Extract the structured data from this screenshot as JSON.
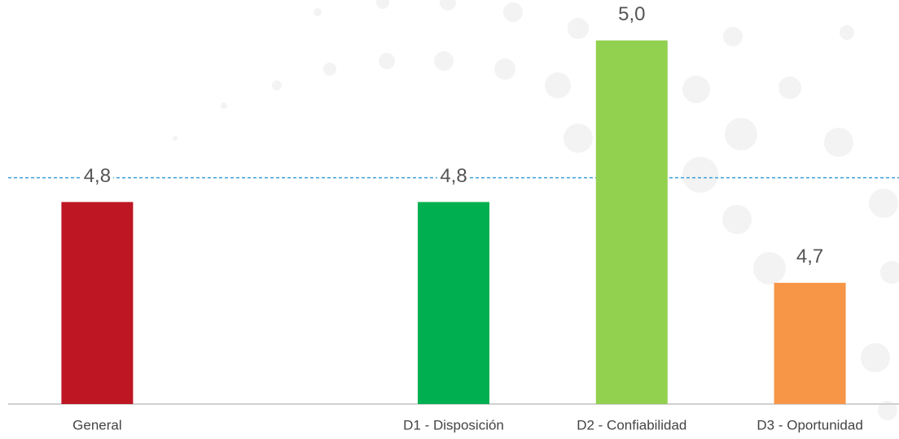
{
  "chart_data": {
    "type": "bar",
    "categories": [
      "General",
      null,
      "D1 - Disposición",
      "D2 - Confiabilidad",
      "D3 - Oportunidad"
    ],
    "values": [
      4.8,
      null,
      4.8,
      5.0,
      4.7
    ],
    "value_labels": [
      "4,8",
      null,
      "4,8",
      "5,0",
      "4,7"
    ],
    "colors": [
      "#be1622",
      null,
      "#00b050",
      "#92d050",
      "#f79646"
    ],
    "ylim": [
      4.55,
      5.05
    ],
    "reference_line": 4.83,
    "reference_color": "#3aa0d8"
  }
}
